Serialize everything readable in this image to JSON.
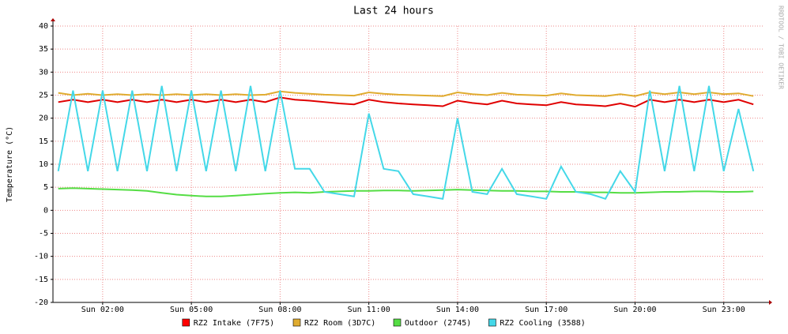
{
  "chart_data": {
    "type": "line",
    "title": "Last 24 hours",
    "y_label": "Temperature (°C)",
    "side_label": "RRDTOOL / TOBI OETIKER",
    "xlim": [
      0.32,
      24.37
    ],
    "xticks": [
      {
        "value": 2,
        "label": "Sun 02:00"
      },
      {
        "value": 5,
        "label": "Sun 05:00"
      },
      {
        "value": 8,
        "label": "Sun 08:00"
      },
      {
        "value": 11,
        "label": "Sun 11:00"
      },
      {
        "value": 14,
        "label": "Sun 14:00"
      },
      {
        "value": 17,
        "label": "Sun 17:00"
      },
      {
        "value": 20,
        "label": "Sun 20:00"
      },
      {
        "value": 23,
        "label": "Sun 23:00"
      }
    ],
    "ylim": [
      -20,
      40
    ],
    "yticks": [
      -20,
      -15,
      -10,
      -5,
      0,
      5,
      10,
      15,
      20,
      25,
      30,
      35,
      40
    ],
    "grid": true,
    "x": [
      0.5,
      1,
      1.5,
      2,
      2.5,
      3,
      3.5,
      4,
      4.5,
      5,
      5.5,
      6,
      6.5,
      7,
      7.5,
      8,
      8.5,
      9,
      9.5,
      10,
      10.5,
      11,
      11.5,
      12,
      12.5,
      13,
      13.5,
      14,
      14.5,
      15,
      15.5,
      16,
      16.5,
      17,
      17.5,
      18,
      18.5,
      19,
      19.5,
      20,
      20.5,
      21,
      21.5,
      22,
      22.5,
      23,
      23.5,
      24
    ],
    "series": [
      {
        "name": "RZ2 Intake (7F75)",
        "color": "#e00000",
        "legend_color": "#ff0000",
        "values": [
          23.5,
          24,
          23.5,
          24,
          23.5,
          24,
          23.5,
          24,
          23.5,
          24,
          23.5,
          24,
          23.5,
          24,
          23.5,
          24.5,
          24,
          23.8,
          23.5,
          23.2,
          23,
          24,
          23.5,
          23.2,
          23,
          22.8,
          22.6,
          23.8,
          23.3,
          23,
          23.8,
          23.2,
          23,
          22.8,
          23.5,
          23,
          22.8,
          22.6,
          23.2,
          22.5,
          24,
          23.5,
          24,
          23.5,
          24,
          23.5,
          24,
          23
        ]
      },
      {
        "name": "RZ2 Room (3D7C)",
        "color": "#e0ac30",
        "legend_color": "#e0ac30",
        "values": [
          25.5,
          25,
          25.3,
          25,
          25.2,
          25,
          25.2,
          25,
          25.2,
          25,
          25.2,
          25,
          25.2,
          25,
          25.1,
          25.8,
          25.5,
          25.3,
          25.1,
          25,
          24.9,
          25.6,
          25.3,
          25.1,
          25,
          24.9,
          24.8,
          25.6,
          25.2,
          25,
          25.5,
          25.1,
          25,
          24.9,
          25.4,
          25,
          24.9,
          24.8,
          25.2,
          24.8,
          25.6,
          25.2,
          25.6,
          25.2,
          25.6,
          25.2,
          25.4,
          24.8
        ]
      },
      {
        "name": "Outdoor (2745)",
        "color": "#55dd44",
        "legend_color": "#55dd44",
        "values": [
          4.7,
          4.8,
          4.7,
          4.6,
          4.5,
          4.4,
          4.2,
          3.8,
          3.4,
          3.2,
          3.0,
          3.0,
          3.2,
          3.4,
          3.6,
          3.8,
          3.9,
          3.8,
          4.0,
          4.1,
          4.2,
          4.2,
          4.3,
          4.3,
          4.2,
          4.3,
          4.4,
          4.5,
          4.4,
          4.3,
          4.2,
          4.2,
          4.1,
          4.1,
          4.0,
          4.0,
          3.9,
          3.9,
          3.8,
          3.8,
          3.9,
          4.0,
          4.0,
          4.1,
          4.1,
          4.0,
          4.0,
          4.1
        ]
      },
      {
        "name": "RZ2 Cooling (3588)",
        "color": "#44d8e8",
        "legend_color": "#44d8e8",
        "values": [
          8.5,
          26,
          8.5,
          26,
          8.5,
          26,
          8.5,
          27,
          8.5,
          26,
          8.5,
          26,
          8.5,
          27,
          8.5,
          26,
          9,
          9,
          4,
          3.5,
          3,
          21,
          9,
          8.5,
          3.5,
          3,
          2.5,
          20,
          4,
          3.5,
          9,
          3.5,
          3,
          2.5,
          9.5,
          4,
          3.5,
          2.5,
          8.5,
          4,
          26,
          8.5,
          27,
          8.5,
          27,
          8.5,
          22,
          8.5
        ]
      }
    ]
  }
}
